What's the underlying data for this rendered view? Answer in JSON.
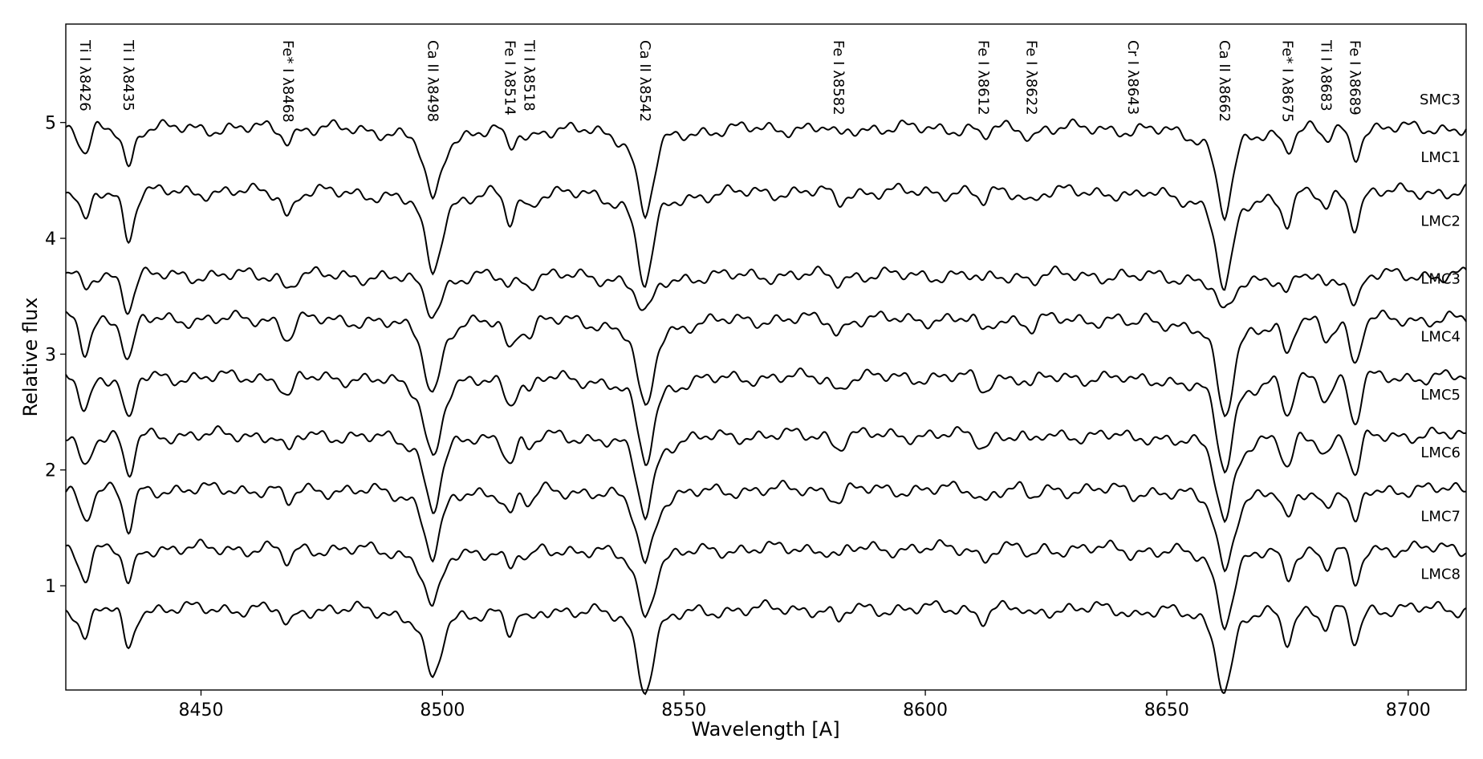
{
  "chart_data": {
    "type": "line",
    "title": "",
    "xlabel": "Wavelength [A]",
    "ylabel": "Relative flux",
    "xlim": [
      8422,
      8712
    ],
    "ylim": [
      0.1,
      5.85
    ],
    "xticks": [
      8450,
      8500,
      8550,
      8600,
      8650,
      8700
    ],
    "yticks": [
      1,
      2,
      3,
      4,
      5
    ],
    "grid": false,
    "legend": "none",
    "line_color": "#000000",
    "line_labels": [
      {
        "label": "Ti I λ8426",
        "wavelength": 8426
      },
      {
        "label": "Ti I λ8435",
        "wavelength": 8435
      },
      {
        "label": "Fe* I λ8468",
        "wavelength": 8468
      },
      {
        "label": "Ca II λ8498",
        "wavelength": 8498
      },
      {
        "label": "Fe I λ8514",
        "wavelength": 8514
      },
      {
        "label": "Ti I λ8518",
        "wavelength": 8518
      },
      {
        "label": "Ca II λ8542",
        "wavelength": 8542
      },
      {
        "label": "Fe I λ8582",
        "wavelength": 8582
      },
      {
        "label": "Fe I λ8612",
        "wavelength": 8612
      },
      {
        "label": "Fe I λ8622",
        "wavelength": 8622
      },
      {
        "label": "Cr I λ8643",
        "wavelength": 8643
      },
      {
        "label": "Ca II λ8662",
        "wavelength": 8662
      },
      {
        "label": "Fe* I λ8675",
        "wavelength": 8675
      },
      {
        "label": "Ti I λ8683",
        "wavelength": 8683
      },
      {
        "label": "Fe I λ8689",
        "wavelength": 8689
      }
    ],
    "series": [
      {
        "name": "SMC3",
        "level": 4.95,
        "depths": [
          0.3,
          0.4,
          0.12,
          0.55,
          0.2,
          0.1,
          0.65,
          0.1,
          0.1,
          0.08,
          0.03,
          0.65,
          0.18,
          0.12,
          0.28
        ],
        "label_flux": 5.2
      },
      {
        "name": "LMC1",
        "level": 4.4,
        "depths": [
          0.35,
          0.5,
          0.25,
          0.6,
          0.3,
          0.15,
          0.7,
          0.12,
          0.12,
          0.1,
          0.05,
          0.75,
          0.3,
          0.18,
          0.35
        ],
        "label_flux": 4.7
      },
      {
        "name": "LMC2",
        "level": 3.68,
        "depths": [
          0.15,
          0.35,
          0.12,
          0.28,
          0.1,
          0.08,
          0.3,
          0.06,
          0.08,
          0.05,
          0.03,
          0.3,
          0.18,
          0.12,
          0.32
        ],
        "label_flux": 4.15
      },
      {
        "name": "LMC3",
        "level": 3.3,
        "depths": [
          0.35,
          0.45,
          0.2,
          0.55,
          0.3,
          0.15,
          0.7,
          0.15,
          0.14,
          0.1,
          0.05,
          0.75,
          0.38,
          0.2,
          0.5
        ],
        "label_flux": 3.65
      },
      {
        "name": "LMC4",
        "level": 2.8,
        "depths": [
          0.35,
          0.5,
          0.22,
          0.6,
          0.25,
          0.15,
          0.65,
          0.14,
          0.14,
          0.1,
          0.05,
          0.7,
          0.4,
          0.2,
          0.5
        ],
        "label_flux": 3.15
      },
      {
        "name": "LMC5",
        "level": 2.3,
        "depths": [
          0.35,
          0.45,
          0.2,
          0.55,
          0.25,
          0.15,
          0.6,
          0.12,
          0.12,
          0.1,
          0.05,
          0.65,
          0.35,
          0.2,
          0.45
        ],
        "label_flux": 2.65
      },
      {
        "name": "LMC6",
        "level": 1.83,
        "depths": [
          0.3,
          0.45,
          0.15,
          0.5,
          0.25,
          0.15,
          0.55,
          0.12,
          0.12,
          0.1,
          0.05,
          0.6,
          0.32,
          0.2,
          0.4
        ],
        "label_flux": 2.15
      },
      {
        "name": "LMC7",
        "level": 1.32,
        "depths": [
          0.3,
          0.4,
          0.15,
          0.45,
          0.2,
          0.12,
          0.5,
          0.1,
          0.1,
          0.08,
          0.04,
          0.55,
          0.3,
          0.18,
          0.4
        ],
        "label_flux": 1.6
      },
      {
        "name": "LMC8",
        "level": 0.8,
        "depths": [
          0.32,
          0.45,
          0.2,
          0.55,
          0.25,
          0.15,
          0.6,
          0.15,
          0.1,
          0.08,
          0.05,
          0.6,
          0.3,
          0.2,
          0.35
        ],
        "label_flux": 1.1
      }
    ]
  }
}
